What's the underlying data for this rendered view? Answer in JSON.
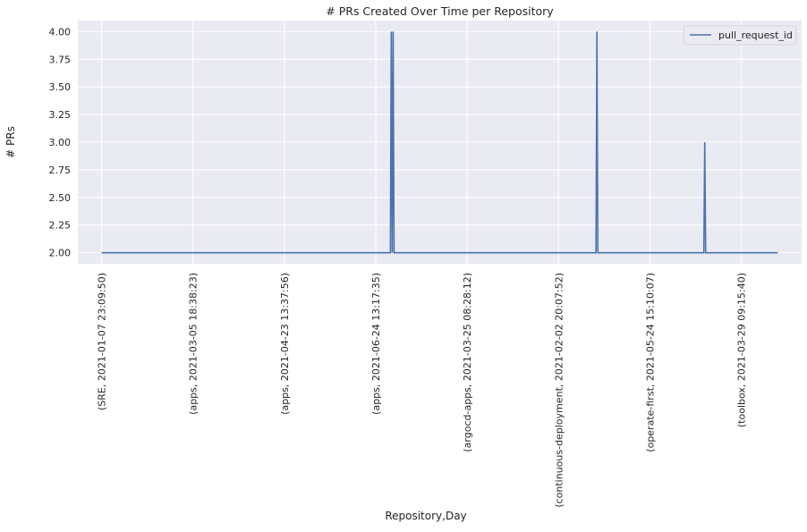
{
  "chart_data": {
    "type": "line",
    "title": "# PRs Created Over Time per Repository",
    "xlabel": "Repository,Day",
    "ylabel": "# PRs",
    "ylim": [
      1.9,
      4.1
    ],
    "yticks": [
      "2.00",
      "2.25",
      "2.50",
      "2.75",
      "3.00",
      "3.25",
      "3.50",
      "3.75",
      "4.00"
    ],
    "xlim": [
      -2.6,
      76.6
    ],
    "xticks": [
      {
        "x": 0,
        "label": "(SRE, 2021-01-07 23:09:50)"
      },
      {
        "x": 10,
        "label": "(apps, 2021-03-05 18:38:23)"
      },
      {
        "x": 20,
        "label": "(apps, 2021-04-23 13:37:56)"
      },
      {
        "x": 30,
        "label": "(apps, 2021-06-24 13:17:35)"
      },
      {
        "x": 40,
        "label": "(argocd-apps, 2021-03-25 08:28:12)"
      },
      {
        "x": 50,
        "label": "(continuous-deployment, 2021-02-02 20:07:52)"
      },
      {
        "x": 60,
        "label": "(operate-first, 2021-05-24 15:10:07)"
      },
      {
        "x": 70,
        "label": "(toolbox, 2021-03-29 09:15:40)"
      }
    ],
    "grid": true,
    "legend_position": "upper-right",
    "series": [
      {
        "name": "pull_request_id",
        "color": "#4c72b0",
        "points": [
          [
            0,
            2
          ],
          [
            31.6,
            2
          ],
          [
            31.7,
            4
          ],
          [
            31.8,
            2
          ],
          [
            31.9,
            4
          ],
          [
            32.0,
            2
          ],
          [
            54.1,
            2
          ],
          [
            54.2,
            4
          ],
          [
            54.3,
            2
          ],
          [
            65.9,
            2
          ],
          [
            66.0,
            3
          ],
          [
            66.1,
            2
          ],
          [
            74,
            2
          ]
        ]
      }
    ]
  }
}
